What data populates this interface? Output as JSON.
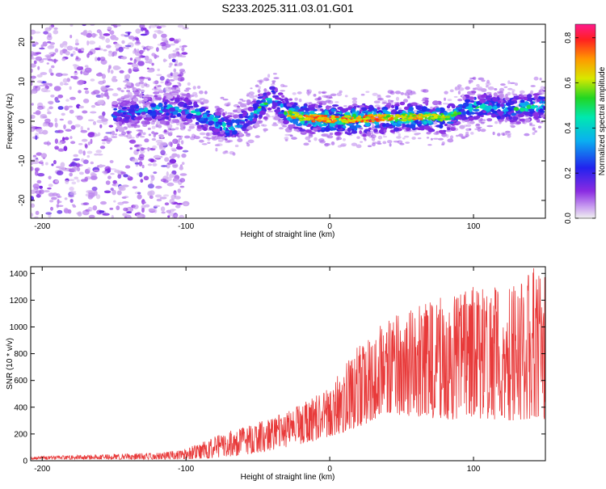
{
  "page": {
    "title": "S233.2025.311.03.01.G01"
  },
  "chart_data": [
    {
      "type": "heatmap",
      "title": "S233.2025.311.03.01.G01",
      "xlabel": "Height of straight line (km)",
      "ylabel": "Frequency (Hz)",
      "xlim": [
        -208,
        150
      ],
      "ylim": [
        -24.5,
        24.5
      ],
      "xticks": [
        -200,
        -100,
        0,
        100
      ],
      "yticks": [
        -20,
        -10,
        0,
        10,
        20
      ],
      "grid": false,
      "colorbar": {
        "label": "Normalized spectral amplitude",
        "range": [
          0.0,
          0.86
        ],
        "ticks": [
          0.0,
          0.2,
          0.4,
          0.6,
          0.8
        ],
        "colormap": [
          "#f0f0f0",
          "#c89cf0",
          "#8a2be2",
          "#2222ee",
          "#0ab0f0",
          "#00e8b0",
          "#22d622",
          "#d8e800",
          "#ff9900",
          "#ff2020",
          "#ff1a8c"
        ]
      },
      "ridge": {
        "x": [
          -150,
          -120,
          -100,
          -80,
          -70,
          -60,
          -50,
          -40,
          -30,
          -20,
          0,
          20,
          40,
          60,
          80,
          90,
          100,
          120,
          150
        ],
        "freq": [
          2,
          3,
          3,
          0,
          -2,
          0,
          3,
          6,
          2,
          1,
          0.5,
          0.5,
          1,
          1,
          1,
          2,
          4,
          3,
          4
        ],
        "peak_amplitude": [
          0.4,
          0.5,
          0.5,
          0.6,
          0.5,
          0.5,
          0.6,
          0.6,
          0.7,
          0.8,
          0.86,
          0.85,
          0.75,
          0.75,
          0.7,
          0.55,
          0.6,
          0.6,
          0.6
        ]
      },
      "noise_region": {
        "x_from": -208,
        "x_to": -100,
        "freq_range": [
          -24.5,
          24.5
        ],
        "amplitude": 0.2
      }
    },
    {
      "type": "line",
      "xlabel": "Height of straight line (km)",
      "ylabel": "SNR (10 * v/v)",
      "xlim": [
        -208,
        150
      ],
      "ylim": [
        0,
        1450
      ],
      "xticks": [
        -200,
        -100,
        0,
        100
      ],
      "yticks": [
        0,
        200,
        400,
        600,
        800,
        1000,
        1200,
        1400
      ],
      "grid": false,
      "color": "#e83a3a",
      "envelope": {
        "x": [
          -208,
          -150,
          -120,
          -100,
          -80,
          -60,
          -40,
          -20,
          0,
          20,
          40,
          60,
          80,
          100,
          120,
          145,
          150
        ],
        "upper": [
          30,
          50,
          60,
          90,
          180,
          260,
          320,
          420,
          550,
          860,
          1060,
          1150,
          1230,
          1300,
          1320,
          1460,
          1400
        ],
        "lower": [
          10,
          10,
          10,
          10,
          20,
          40,
          80,
          120,
          180,
          250,
          350,
          330,
          300,
          320,
          300,
          280,
          300
        ]
      }
    }
  ]
}
